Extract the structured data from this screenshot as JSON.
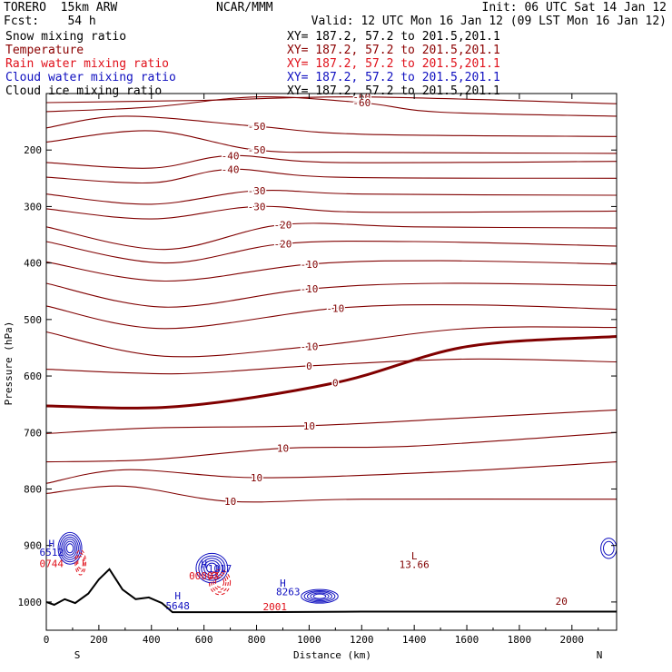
{
  "header": {
    "model": "TORERO  15km ARW",
    "center": "NCAR/MMM",
    "init": "Init: 06 UTC Sat 14 Jan 12",
    "fcst": "Fcst:    54 h",
    "valid": "Valid: 12 UTC Mon 16 Jan 12 (09 LST Mon 16 Jan 12)"
  },
  "legend": [
    {
      "name": "Snow mixing ratio",
      "color": "#000000",
      "xy": "XY= 187.2, 57.2 to 201.5,201.1"
    },
    {
      "name": "Temperature",
      "color": "#8b0000",
      "xy": "XY= 187.2, 57.2 to 201.5,201.1"
    },
    {
      "name": "Rain water mixing ratio",
      "color": "#e0101a",
      "xy": "XY= 187.2, 57.2 to 201.5,201.1"
    },
    {
      "name": "Cloud water mixing ratio",
      "color": "#1010c0",
      "xy": "XY= 187.2, 57.2 to 201.5,201.1"
    },
    {
      "name": "Cloud ice mixing ratio",
      "color": "#000000",
      "xy": "XY= 187.2, 57.2 to 201.5,201.1"
    }
  ],
  "chart_data": {
    "type": "contour-cross-section",
    "xlabel": "Distance (km)",
    "ylabel": "Pressure (hPa)",
    "xlim": [
      0,
      2170
    ],
    "ylim": [
      1050,
      100
    ],
    "x_ticks": [
      "0",
      "200",
      "400",
      "600",
      "800",
      "1000",
      "1200",
      "1400",
      "1600",
      "1800",
      "2000"
    ],
    "y_ticks": [
      "200",
      "300",
      "400",
      "500",
      "600",
      "700",
      "800",
      "900",
      "1000"
    ],
    "x_end_labels": {
      "left": "S",
      "right": "N"
    },
    "temperature_contours": [
      {
        "label": "-60",
        "points": [
          [
            0,
            116
          ],
          [
            600,
            112
          ],
          [
            1200,
            106
          ],
          [
            2170,
            118
          ]
        ]
      },
      {
        "label": "-60",
        "points": [
          [
            0,
            132
          ],
          [
            400,
            124
          ],
          [
            800,
            106
          ],
          [
            1200,
            116
          ],
          [
            1500,
            133
          ],
          [
            2170,
            140
          ]
        ]
      },
      {
        "label": "-50",
        "points": [
          [
            0,
            161
          ],
          [
            300,
            140
          ],
          [
            800,
            158
          ],
          [
            1200,
            172
          ],
          [
            2170,
            176
          ]
        ]
      },
      {
        "label": "-50",
        "points": [
          [
            0,
            186
          ],
          [
            400,
            166
          ],
          [
            800,
            200
          ],
          [
            1200,
            204
          ],
          [
            2170,
            206
          ]
        ]
      },
      {
        "label": "-40",
        "points": [
          [
            0,
            222
          ],
          [
            400,
            232
          ],
          [
            700,
            210
          ],
          [
            1100,
            222
          ],
          [
            2170,
            220
          ]
        ]
      },
      {
        "label": "-40",
        "points": [
          [
            0,
            248
          ],
          [
            400,
            258
          ],
          [
            700,
            234
          ],
          [
            1100,
            248
          ],
          [
            2170,
            250
          ]
        ]
      },
      {
        "label": "-30",
        "points": [
          [
            0,
            278
          ],
          [
            400,
            296
          ],
          [
            800,
            272
          ],
          [
            1200,
            278
          ],
          [
            2170,
            280
          ]
        ]
      },
      {
        "label": "-30",
        "points": [
          [
            0,
            304
          ],
          [
            400,
            322
          ],
          [
            800,
            300
          ],
          [
            1200,
            310
          ],
          [
            2170,
            308
          ]
        ]
      },
      {
        "label": "-20",
        "points": [
          [
            0,
            336
          ],
          [
            450,
            376
          ],
          [
            900,
            332
          ],
          [
            1400,
            336
          ],
          [
            2170,
            338
          ]
        ]
      },
      {
        "label": "-20",
        "points": [
          [
            0,
            362
          ],
          [
            450,
            400
          ],
          [
            900,
            366
          ],
          [
            1400,
            362
          ],
          [
            2170,
            370
          ]
        ]
      },
      {
        "label": "-10",
        "points": [
          [
            0,
            398
          ],
          [
            450,
            432
          ],
          [
            1000,
            402
          ],
          [
            1500,
            396
          ],
          [
            2170,
            402
          ]
        ]
      },
      {
        "label": "-10",
        "points": [
          [
            0,
            436
          ],
          [
            450,
            478
          ],
          [
            1000,
            446
          ],
          [
            1500,
            436
          ],
          [
            2170,
            440
          ]
        ]
      },
      {
        "label": "-10",
        "points": [
          [
            0,
            476
          ],
          [
            450,
            516
          ],
          [
            1100,
            480
          ],
          [
            1600,
            474
          ],
          [
            2170,
            482
          ]
        ]
      },
      {
        "label": "-10",
        "points": [
          [
            0,
            522
          ],
          [
            450,
            565
          ],
          [
            1000,
            548
          ],
          [
            1600,
            516
          ],
          [
            2170,
            514
          ]
        ]
      },
      {
        "label": "0",
        "points": [
          [
            0,
            588
          ],
          [
            500,
            596
          ],
          [
            1000,
            582
          ],
          [
            1600,
            570
          ],
          [
            2170,
            575
          ]
        ]
      },
      {
        "label": "0",
        "points": [
          [
            0,
            653
          ],
          [
            500,
            654
          ],
          [
            1100,
            612
          ],
          [
            1600,
            548
          ],
          [
            2170,
            530
          ]
        ],
        "thick": true
      },
      {
        "label": "10",
        "points": [
          [
            0,
            702
          ],
          [
            400,
            692
          ],
          [
            1000,
            688
          ],
          [
            1600,
            674
          ],
          [
            2170,
            660
          ]
        ]
      },
      {
        "label": "10",
        "points": [
          [
            0,
            752
          ],
          [
            400,
            748
          ],
          [
            900,
            728
          ],
          [
            1400,
            724
          ],
          [
            2170,
            700
          ]
        ]
      },
      {
        "label": "10",
        "points": [
          [
            0,
            790
          ],
          [
            300,
            766
          ],
          [
            800,
            780
          ],
          [
            1500,
            770
          ],
          [
            2170,
            752
          ]
        ]
      },
      {
        "label": "10",
        "points": [
          [
            0,
            808
          ],
          [
            300,
            795
          ],
          [
            700,
            822
          ],
          [
            1200,
            818
          ],
          [
            2170,
            818
          ]
        ]
      }
    ],
    "annotations": [
      {
        "text": "L",
        "x": 1400,
        "y": 925
      },
      {
        "text": "13.66",
        "x": 1400,
        "y": 940
      },
      {
        "text": "H",
        "x": 20,
        "y": 903
      },
      {
        "text": "6512",
        "x": 20,
        "y": 918
      },
      {
        "text": "0744",
        "x": 20,
        "y": 938
      },
      {
        "text": "H",
        "x": 600,
        "y": 940
      },
      {
        "text": "1017",
        "x": 660,
        "y": 947
      },
      {
        "text": "00003",
        "x": 600,
        "y": 960
      },
      {
        "text": "H",
        "x": 500,
        "y": 995
      },
      {
        "text": "5648",
        "x": 500,
        "y": 1013
      },
      {
        "text": "H",
        "x": 900,
        "y": 973
      },
      {
        "text": "8263",
        "x": 920,
        "y": 988
      },
      {
        "text": "2001",
        "x": 870,
        "y": 1015
      },
      {
        "text": "20",
        "x": 1960,
        "y": 1005
      }
    ]
  }
}
